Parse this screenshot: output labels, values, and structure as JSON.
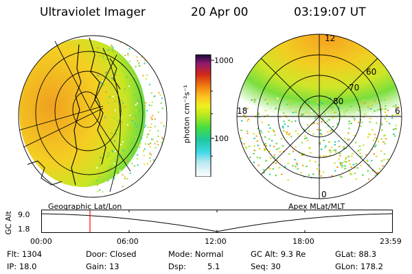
{
  "header": {
    "title": "Ultraviolet Imager",
    "date": "20 Apr 00",
    "time": "03:19:07 UT"
  },
  "colorbar": {
    "label": "photon cm⁻²s⁻¹",
    "ticks": [
      "1000",
      "100"
    ]
  },
  "left_panel": {
    "caption": "Geographic Lat/Lon"
  },
  "right_panel": {
    "caption": "Apex MLat/MLT",
    "mlt_labels": {
      "top": "12",
      "left": "18",
      "right": "6",
      "bottom": "0"
    },
    "mlat_labels": [
      "60",
      "70",
      "80"
    ]
  },
  "timeline": {
    "ylabel": "GC Alt",
    "y_values": [
      "9.0",
      "1.8"
    ],
    "x_ticks": [
      "00:00",
      "06:00",
      "12:00",
      "18:00",
      "23:59"
    ]
  },
  "status": {
    "flt": "Flt: 1304",
    "ip": "IP: 18.0",
    "door": "Door: Closed",
    "gain": "Gain: 13",
    "mode": "Mode: Normal",
    "dsp_label": "Dsp:",
    "dsp_value": "5.1",
    "gcalt": "GC Alt: 9.3 Re",
    "seq": "Seq: 30",
    "glat": "GLat: 88.3",
    "glon": "GLon: 178.2"
  },
  "colors": {
    "marker": "#ff0000",
    "scale": [
      "#ffffff",
      "#40d8e8",
      "#1ec8a0",
      "#44dd44",
      "#b4e81e",
      "#f0f020",
      "#ffc020",
      "#f08010",
      "#d02818",
      "#901870",
      "#1a0a3a"
    ]
  }
}
